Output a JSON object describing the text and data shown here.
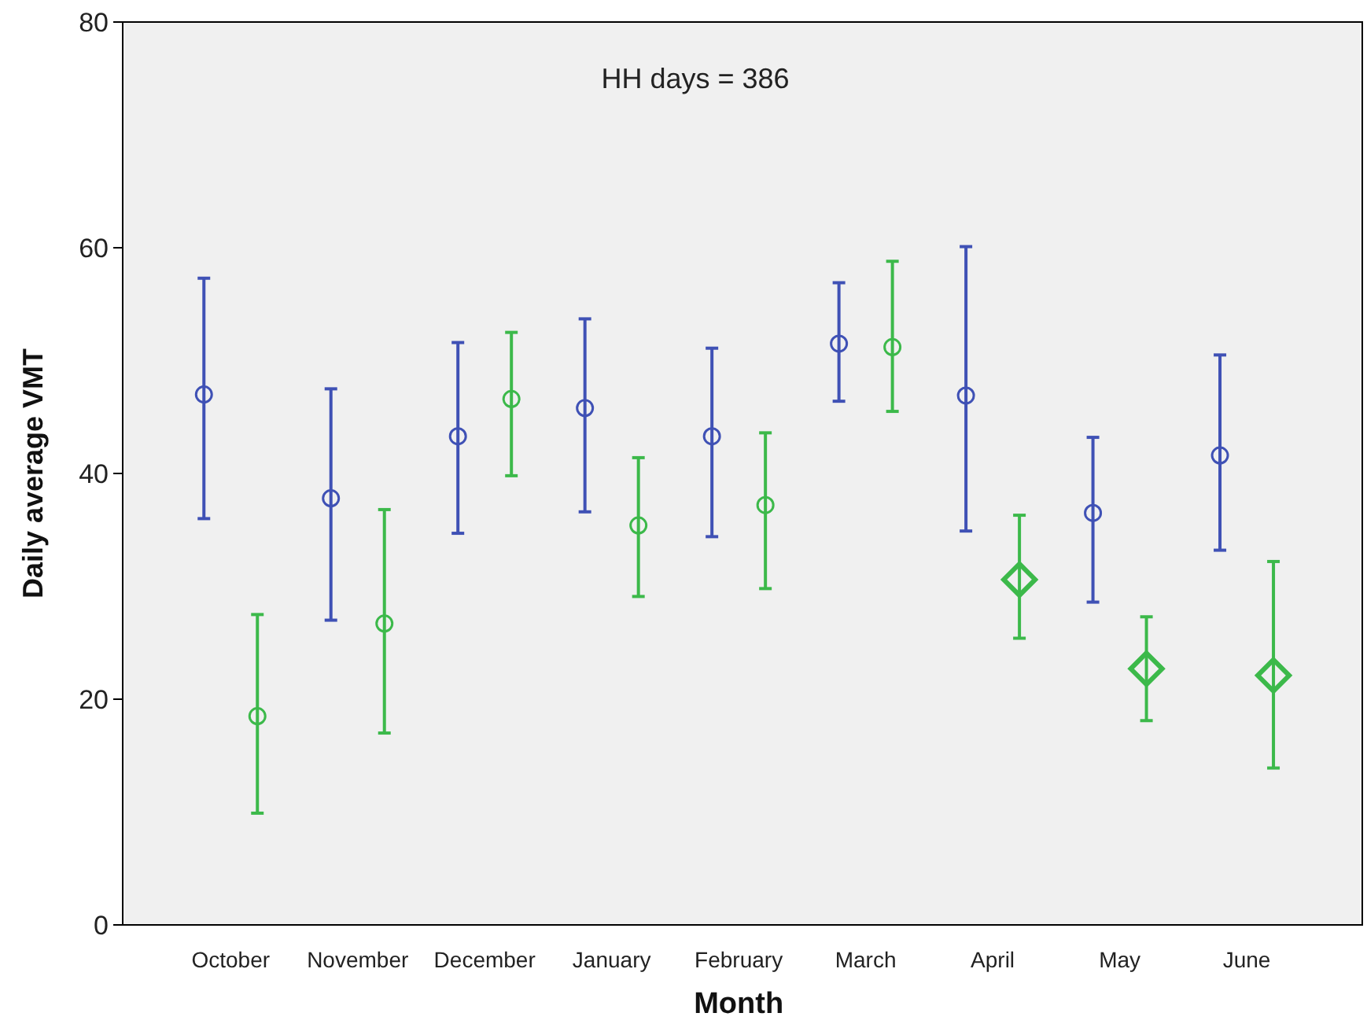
{
  "chart_data": {
    "type": "scatter",
    "xlabel": "Month",
    "ylabel": "Daily average VMT",
    "annotations": [
      "HH days = 386"
    ],
    "categories": [
      "October",
      "November",
      "December",
      "January",
      "February",
      "March",
      "April",
      "May",
      "June"
    ],
    "ylim": [
      0,
      80
    ],
    "yticks": [
      0,
      20,
      40,
      60,
      80
    ],
    "grid": false,
    "series": [
      {
        "color": "#3f51b5",
        "marker": "circle",
        "values": [
          47,
          37.8,
          43.3,
          45.8,
          43.3,
          51.5,
          46.9,
          36.5,
          41.6
        ],
        "errors": [
          [
            36,
            57.3
          ],
          [
            27,
            47.5
          ],
          [
            34.7,
            51.6
          ],
          [
            36.6,
            53.7
          ],
          [
            34.4,
            51.1
          ],
          [
            46.4,
            56.9
          ],
          [
            34.9,
            60.1
          ],
          [
            28.6,
            43.2
          ],
          [
            33.2,
            50.5
          ]
        ]
      },
      {
        "color": "#3cb94a",
        "marker": "circle",
        "values": [
          18.5,
          26.7,
          46.6,
          35.4,
          37.2,
          51.2,
          null,
          null,
          null
        ],
        "errors": [
          [
            9.9,
            27.5
          ],
          [
            17,
            36.8
          ],
          [
            39.8,
            52.5
          ],
          [
            29.1,
            41.4
          ],
          [
            29.8,
            43.6
          ],
          [
            45.5,
            58.8
          ],
          null,
          null,
          null
        ]
      },
      {
        "color": "#3cb94a",
        "marker": "diamond",
        "values": [
          null,
          null,
          null,
          null,
          null,
          null,
          30.6,
          22.7,
          22.1
        ],
        "errors": [
          null,
          null,
          null,
          null,
          null,
          null,
          [
            25.4,
            36.3
          ],
          [
            18.1,
            27.3
          ],
          [
            13.9,
            32.2
          ]
        ]
      }
    ]
  }
}
